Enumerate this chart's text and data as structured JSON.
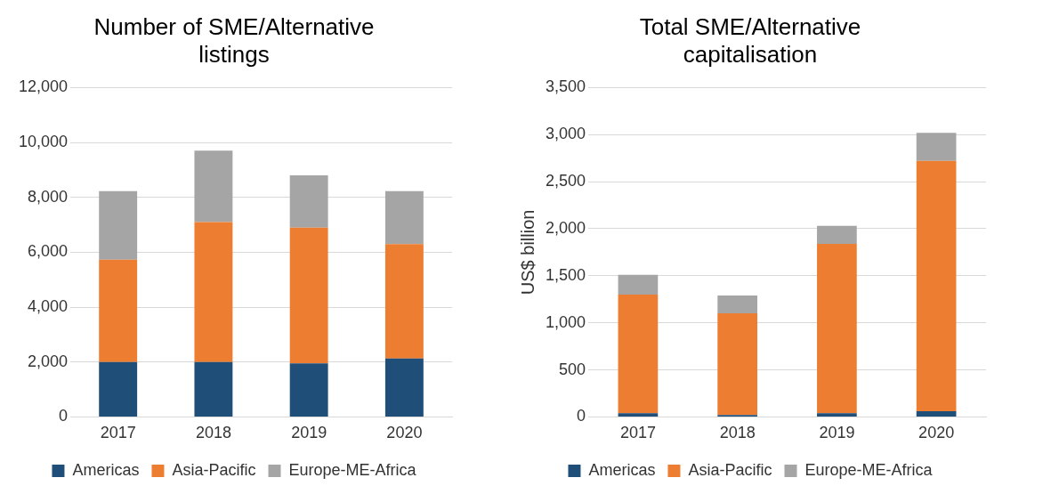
{
  "chart_data": [
    {
      "type": "bar",
      "title": "Number of SME/Alternative listings",
      "categories": [
        "2017",
        "2018",
        "2019",
        "2020"
      ],
      "stacked": true,
      "ylim": [
        0,
        12000
      ],
      "yticks": [
        {
          "value": 0,
          "label": "0"
        },
        {
          "value": 2000,
          "label": "2,000"
        },
        {
          "value": 4000,
          "label": "4,000"
        },
        {
          "value": 6000,
          "label": "6,000"
        },
        {
          "value": 8000,
          "label": "8,000"
        },
        {
          "value": 10000,
          "label": "10,000"
        },
        {
          "value": 12000,
          "label": "12,000"
        }
      ],
      "grid": "y",
      "legend": "bottom",
      "series": [
        {
          "name": "Americas",
          "color": "#1f4e79",
          "values": [
            2000,
            2000,
            1950,
            2130
          ]
        },
        {
          "name": "Asia-Pacific",
          "color": "#ed7d31",
          "values": [
            3730,
            5100,
            4950,
            4170
          ]
        },
        {
          "name": "Europe-ME-Africa",
          "color": "#a5a5a5",
          "values": [
            2500,
            2600,
            1900,
            1930
          ]
        }
      ]
    },
    {
      "type": "bar",
      "title": "Total SME/Alternative capitalisation",
      "ylabel": "US$ billion",
      "categories": [
        "2017",
        "2018",
        "2019",
        "2020"
      ],
      "stacked": true,
      "ylim": [
        0,
        3500
      ],
      "yticks": [
        {
          "value": 0,
          "label": "0"
        },
        {
          "value": 500,
          "label": "500"
        },
        {
          "value": 1000,
          "label": "1,000"
        },
        {
          "value": 1500,
          "label": "1,500"
        },
        {
          "value": 2000,
          "label": "2,000"
        },
        {
          "value": 2500,
          "label": "2,500"
        },
        {
          "value": 3000,
          "label": "3,000"
        },
        {
          "value": 3500,
          "label": "3,500"
        }
      ],
      "grid": "y",
      "legend": "bottom",
      "series": [
        {
          "name": "Americas",
          "color": "#1f4e79",
          "values": [
            40,
            20,
            40,
            60
          ]
        },
        {
          "name": "Asia-Pacific",
          "color": "#ed7d31",
          "values": [
            1260,
            1080,
            1800,
            2660
          ]
        },
        {
          "name": "Europe-ME-Africa",
          "color": "#a5a5a5",
          "values": [
            210,
            190,
            190,
            300
          ]
        }
      ]
    }
  ]
}
